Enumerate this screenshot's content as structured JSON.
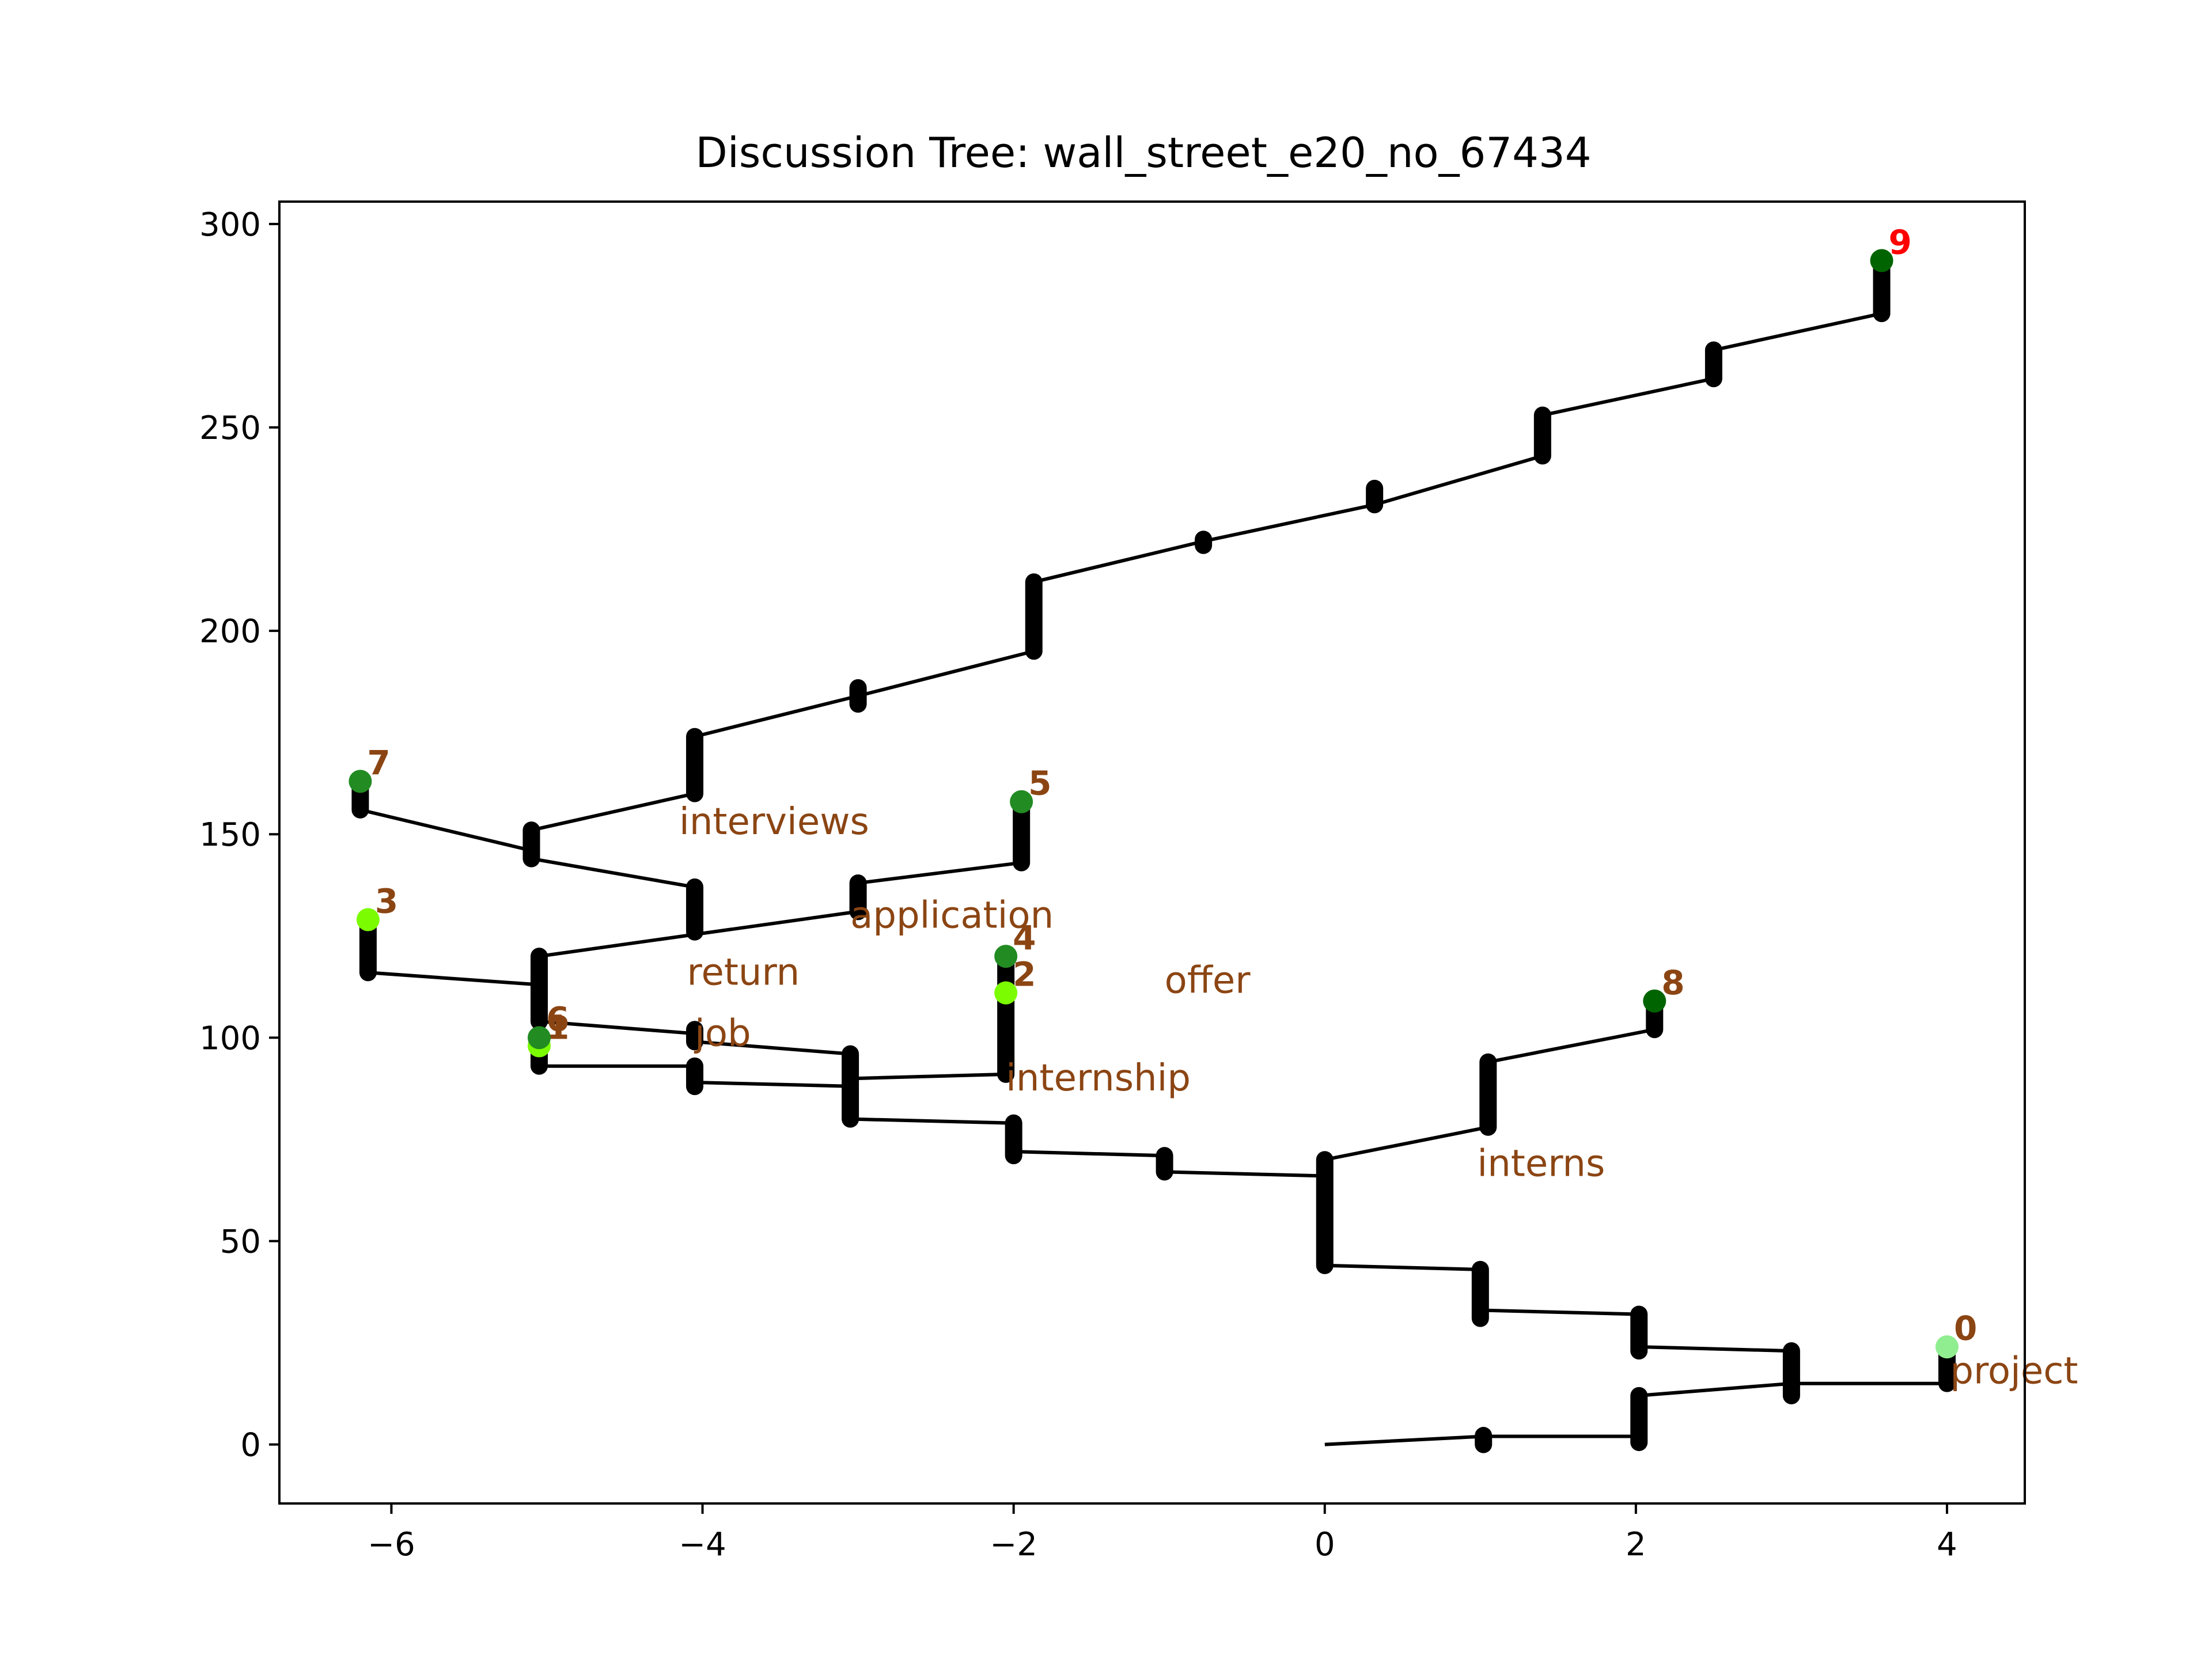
{
  "chart_data": {
    "type": "line",
    "title": "Discussion Tree: wall_street_e20_no_67434",
    "xlabel": "",
    "ylabel": "",
    "xlim": [
      -6.72,
      4.5
    ],
    "ylim": [
      -14.5,
      305.5
    ],
    "xticks": [
      -6,
      -4,
      -2,
      0,
      2,
      4
    ],
    "xtick_labels": [
      "−6",
      "−4",
      "−2",
      "0",
      "2",
      "4"
    ],
    "yticks": [
      0,
      50,
      100,
      150,
      200,
      250,
      300
    ],
    "ytick_labels": [
      "0",
      "50",
      "100",
      "150",
      "200",
      "250",
      "300"
    ],
    "grid": false,
    "colors": {
      "line": "#000000",
      "label": "#8b4513",
      "label_highlight": "#ff0000"
    },
    "path": [
      [
        0,
        0
      ],
      [
        1.02,
        2
      ],
      [
        2.02,
        2
      ],
      [
        2.02,
        12
      ],
      [
        3.0,
        15
      ],
      [
        3.0,
        23
      ],
      [
        2.02,
        24
      ],
      [
        2.02,
        32
      ],
      [
        1.0,
        33
      ],
      [
        1.0,
        43
      ],
      [
        0,
        44
      ],
      [
        0,
        70
      ],
      [
        1.05,
        78
      ],
      [
        1.05,
        94
      ],
      [
        2.12,
        102
      ]
    ],
    "branches": [
      [
        [
          0,
          66
        ],
        [
          -1.03,
          67
        ],
        [
          -1.03,
          71
        ],
        [
          -2.0,
          72
        ],
        [
          -2.0,
          79
        ],
        [
          -3.05,
          80
        ],
        [
          -3.05,
          96
        ],
        [
          -4.05,
          99
        ],
        [
          -4.05,
          101
        ],
        [
          -5.05,
          104
        ],
        [
          -5.05,
          120
        ],
        [
          -3.0,
          131
        ],
        [
          -3.0,
          138
        ],
        [
          -1.95,
          143
        ]
      ],
      [
        [
          -3.0,
          88
        ],
        [
          -4.05,
          89
        ],
        [
          -4.05,
          93
        ],
        [
          -5.05,
          93
        ]
      ],
      [
        [
          -3.0,
          90
        ],
        [
          -2.05,
          91
        ],
        [
          -2.05,
          120
        ]
      ],
      [
        [
          -5.05,
          113
        ],
        [
          -6.15,
          116
        ],
        [
          -6.15,
          129
        ]
      ],
      [
        [
          -4.05,
          126
        ],
        [
          -4.05,
          137
        ],
        [
          -5.1,
          144
        ],
        [
          -5.1,
          151
        ],
        [
          -4.05,
          160
        ],
        [
          -4.05,
          174
        ],
        [
          -3.0,
          184
        ],
        [
          -1.87,
          195
        ],
        [
          -1.87,
          212
        ],
        [
          -0.78,
          222
        ],
        [
          0.32,
          231
        ],
        [
          1.4,
          243
        ],
        [
          1.4,
          253
        ],
        [
          2.5,
          262
        ],
        [
          2.5,
          269
        ],
        [
          3.58,
          278
        ],
        [
          3.58,
          291
        ]
      ],
      [
        [
          -5.1,
          146
        ],
        [
          -6.2,
          156
        ],
        [
          -6.2,
          163
        ]
      ],
      [
        [
          3.0,
          15
        ],
        [
          4.0,
          15
        ],
        [
          4.0,
          24
        ]
      ]
    ],
    "thick_segments": [
      [
        1.02,
        0,
        2.2
      ],
      [
        2.02,
        0.5,
        12
      ],
      [
        3.0,
        12,
        23
      ],
      [
        2.02,
        23,
        32
      ],
      [
        1.0,
        31,
        43
      ],
      [
        0,
        44,
        70
      ],
      [
        1.05,
        78,
        94
      ],
      [
        2.12,
        102,
        107
      ],
      [
        -1.03,
        67,
        71
      ],
      [
        -2.0,
        71,
        79
      ],
      [
        -3.05,
        80,
        96
      ],
      [
        -4.05,
        88,
        93
      ],
      [
        -4.05,
        99,
        102
      ],
      [
        -5.05,
        93,
        100
      ],
      [
        -5.05,
        104,
        120
      ],
      [
        -2.05,
        91,
        120
      ],
      [
        -6.15,
        116,
        129
      ],
      [
        -3.0,
        131,
        138
      ],
      [
        -1.95,
        143,
        158
      ],
      [
        -4.05,
        126,
        137
      ],
      [
        -5.1,
        144,
        151
      ],
      [
        -4.05,
        160,
        174
      ],
      [
        -3.0,
        182,
        186
      ],
      [
        -1.87,
        195,
        212
      ],
      [
        -0.78,
        221,
        222.5
      ],
      [
        0.32,
        231,
        235
      ],
      [
        1.4,
        243,
        253
      ],
      [
        2.5,
        262,
        269
      ],
      [
        3.58,
        278,
        291
      ],
      [
        -6.2,
        156,
        161
      ],
      [
        4.0,
        15,
        24
      ]
    ],
    "nodes": [
      {
        "label": "0",
        "x": 4.0,
        "y": 24,
        "color": "#90ee90",
        "label_color": "#8b4513"
      },
      {
        "label": "1",
        "x": -5.05,
        "y": 98,
        "color": "#7cfc00",
        "label_color": "#8b4513"
      },
      {
        "label": "2",
        "x": -2.05,
        "y": 111,
        "color": "#7cfc00",
        "label_color": "#8b4513"
      },
      {
        "label": "3",
        "x": -6.15,
        "y": 129,
        "color": "#7cfc00",
        "label_color": "#8b4513"
      },
      {
        "label": "4",
        "x": -2.05,
        "y": 120,
        "color": "#228b22",
        "label_color": "#8b4513"
      },
      {
        "label": "5",
        "x": -1.95,
        "y": 158,
        "color": "#228b22",
        "label_color": "#8b4513"
      },
      {
        "label": "6",
        "x": -5.05,
        "y": 100,
        "color": "#228b22",
        "label_color": "#8b4513"
      },
      {
        "label": "7",
        "x": -6.2,
        "y": 163,
        "color": "#228b22",
        "label_color": "#8b4513"
      },
      {
        "label": "8",
        "x": 2.12,
        "y": 109,
        "color": "#006400",
        "label_color": "#8b4513"
      },
      {
        "label": "9",
        "x": 3.58,
        "y": 291,
        "color": "#006400",
        "label_color": "#ff0000"
      }
    ],
    "annotations": [
      {
        "text": "interviews",
        "x": -4.15,
        "y": 150
      },
      {
        "text": "application",
        "x": -3.05,
        "y": 127
      },
      {
        "text": "return",
        "x": -4.1,
        "y": 113
      },
      {
        "text": "offer",
        "x": -1.03,
        "y": 111
      },
      {
        "text": "job",
        "x": -4.05,
        "y": 98
      },
      {
        "text": "internship",
        "x": -2.05,
        "y": 87
      },
      {
        "text": "interns",
        "x": 0.98,
        "y": 66
      },
      {
        "text": "project",
        "x": 4.02,
        "y": 15
      }
    ]
  }
}
